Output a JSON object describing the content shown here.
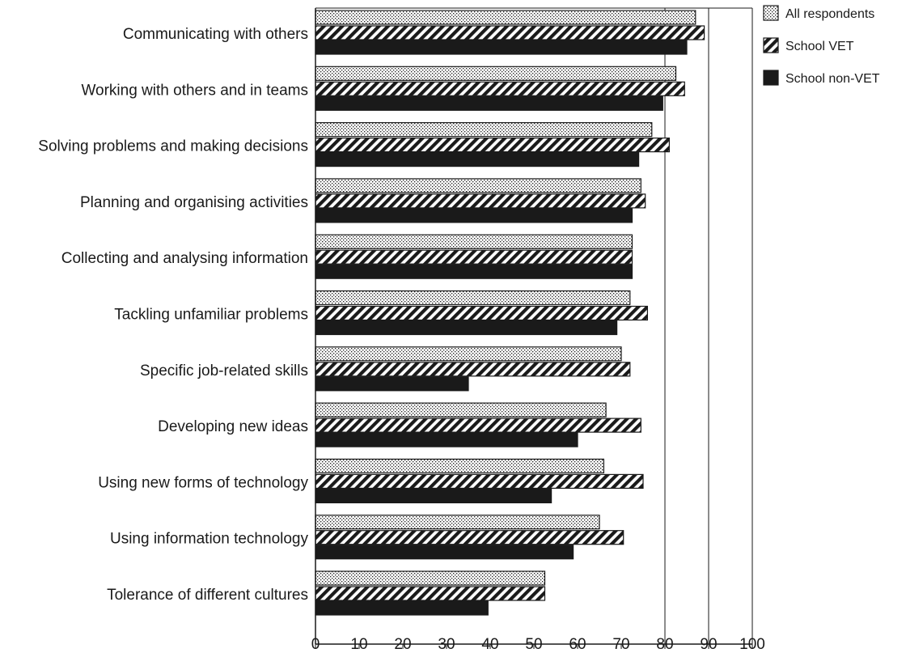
{
  "chart_data": {
    "type": "bar",
    "orientation": "horizontal",
    "categories": [
      "Communicating with others",
      "Working with others and in teams",
      "Solving problems and making decisions",
      "Planning and organising activities",
      "Collecting and analysing information",
      "Tackling unfamiliar problems",
      "Specific job-related skills",
      "Developing new ideas",
      "Using new forms of technology",
      "Using information technology",
      "Tolerance of different cultures"
    ],
    "series": [
      {
        "name": "All respondents",
        "pattern": "dots",
        "values": [
          87,
          82.5,
          77,
          74.5,
          72.5,
          72,
          70,
          66.5,
          66,
          65,
          52.5
        ]
      },
      {
        "name": "School VET",
        "pattern": "diagonal-stripes",
        "values": [
          89,
          84.5,
          81,
          75.5,
          72.5,
          76,
          72,
          74.5,
          75,
          70.5,
          52.5
        ]
      },
      {
        "name": "School non-VET",
        "pattern": "solid",
        "values": [
          85,
          79.5,
          74,
          72.5,
          72.5,
          69,
          35,
          60,
          54,
          59,
          39.5
        ]
      }
    ],
    "xticks": [
      "0",
      "10",
      "20",
      "30",
      "40",
      "50",
      "60",
      "70",
      "80",
      "90",
      "100"
    ],
    "xlim": [
      0,
      100
    ],
    "title": "",
    "xlabel": "",
    "ylabel": "",
    "grid": "vertical lines at 80 and 90",
    "legend_position": "top-right",
    "colors": {
      "dark": "#1a1a1a",
      "light": "#ffffff"
    }
  }
}
